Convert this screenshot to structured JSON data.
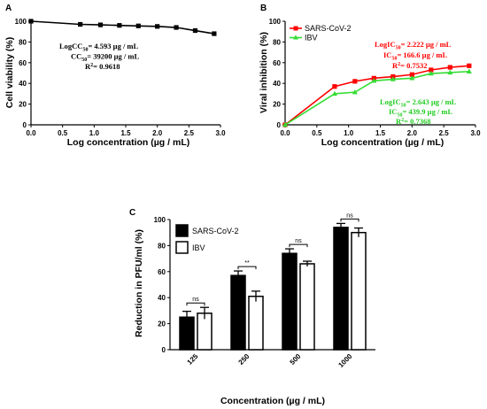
{
  "panels": {
    "a": "A",
    "b": "B",
    "c": "C"
  },
  "colors": {
    "sars": "#ff0000",
    "ibv": "#33dd33",
    "black": "#000000"
  },
  "chart_data": [
    {
      "type": "line",
      "panel": "A",
      "xlabel": "Log concentration (µg / mL)",
      "ylabel": "Cell viability (%)",
      "xlim": [
        0,
        3.0
      ],
      "ylim": [
        0,
        100
      ],
      "xticks": [
        "0.0",
        "0.5",
        "1.0",
        "1.5",
        "2.0",
        "2.5",
        "3.0"
      ],
      "yticks": [
        "0",
        "20",
        "40",
        "60",
        "80",
        "100"
      ],
      "series": [
        {
          "x": [
            0,
            0.78,
            1.1,
            1.4,
            1.7,
            2.0,
            2.3,
            2.6,
            2.9
          ],
          "values": [
            100,
            97,
            96.5,
            96,
            95.5,
            95,
            94,
            91,
            88
          ]
        }
      ],
      "annotation": [
        {
          "pre": "LogCC",
          "sub": "50",
          "post": "= 4.593  µg / mL"
        },
        {
          "pre": "CC",
          "sub": "50",
          "post": "= 39200  µg / mL"
        },
        {
          "pre": "R",
          "sup": "2",
          "post": "= 0.9618"
        }
      ]
    },
    {
      "type": "line",
      "panel": "B",
      "xlabel": "Log concentration (µg / mL)",
      "ylabel": "Viral inhibition (%)",
      "xlim": [
        0,
        3.0
      ],
      "ylim": [
        0,
        100
      ],
      "xticks": [
        "0.0",
        "0.5",
        "1.0",
        "1.5",
        "2.0",
        "2.5",
        "3.0"
      ],
      "yticks": [
        "0",
        "20",
        "40",
        "60",
        "80",
        "100"
      ],
      "legend_position": "top-left",
      "series": [
        {
          "name": "SARS-CoV-2",
          "x": [
            0,
            0.78,
            1.1,
            1.4,
            1.7,
            2.0,
            2.3,
            2.6,
            2.9
          ],
          "values": [
            0,
            37,
            42,
            45,
            46.5,
            48.5,
            53,
            55.5,
            57
          ]
        },
        {
          "name": "IBV",
          "x": [
            0,
            0.78,
            1.1,
            1.4,
            1.7,
            2.0,
            2.3,
            2.6,
            2.9
          ],
          "values": [
            0,
            30,
            31.5,
            42.5,
            44,
            45,
            49.5,
            50.5,
            51.5
          ]
        }
      ],
      "annotation_sars": [
        {
          "pre": "LogIC",
          "sub": "50",
          "post": "= 2.222  µg / mL"
        },
        {
          "pre": "IC",
          "sub": "50",
          "post": "= 166.6  µg / mL"
        },
        {
          "pre": "R",
          "sup": "2",
          "post": "= 0.7532"
        }
      ],
      "annotation_ibv": [
        {
          "pre": "LogIC",
          "sub": "50",
          "post": "= 2.643  µg / mL"
        },
        {
          "pre": "IC",
          "sub": "50",
          "post": "= 439.9  µg / mL"
        },
        {
          "pre": "R",
          "sup": "2",
          "post": "= 0.7368"
        }
      ]
    },
    {
      "type": "bar",
      "panel": "C",
      "xlabel": "Concentration (µg / mL)",
      "ylabel": "Reduction in PFU/ml (%)",
      "ylim": [
        0,
        100
      ],
      "yticks": [
        "0",
        "20",
        "40",
        "60",
        "80",
        "100"
      ],
      "categories": [
        "125",
        "250",
        "500",
        "1000"
      ],
      "legend_position": "top-left",
      "series": [
        {
          "name": "SARS-CoV-2",
          "values": [
            25,
            57,
            74,
            94
          ],
          "errors": [
            4.5,
            3.5,
            3.5,
            3
          ]
        },
        {
          "name": "IBV",
          "values": [
            28,
            41,
            66,
            90
          ],
          "errors": [
            4.5,
            4,
            2,
            3.5
          ]
        }
      ],
      "significance": [
        "ns",
        "**",
        "ns",
        "ns"
      ]
    }
  ]
}
